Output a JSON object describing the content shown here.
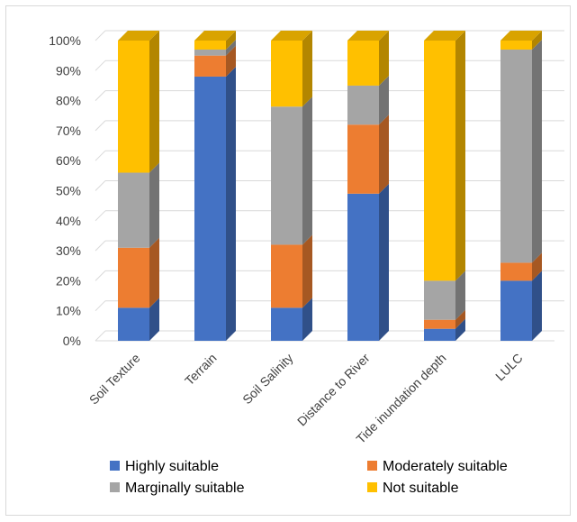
{
  "chart_data": {
    "type": "bar",
    "stacked": true,
    "percent": true,
    "three_d": true,
    "categories": [
      "Soil Texture",
      "Terrain",
      "Soil Salinity",
      "Distance to River",
      "Tide inundation depth",
      "LULC"
    ],
    "series": [
      {
        "name": "Highly suitable",
        "color": "#4472C4",
        "values": [
          11,
          88,
          11,
          49,
          4,
          20
        ]
      },
      {
        "name": "Moderately suitable",
        "color": "#ED7D31",
        "values": [
          20,
          7,
          21,
          23,
          3,
          6
        ]
      },
      {
        "name": "Marginally suitable",
        "color": "#A5A5A5",
        "values": [
          25,
          2,
          46,
          13,
          13,
          71
        ]
      },
      {
        "name": "Not suitable",
        "color": "#FFC000",
        "values": [
          44,
          3,
          22,
          15,
          80,
          3
        ]
      }
    ],
    "ylim": [
      0,
      100
    ],
    "yticks": [
      "0%",
      "10%",
      "20%",
      "30%",
      "40%",
      "50%",
      "60%",
      "70%",
      "80%",
      "90%",
      "100%"
    ],
    "grid": true,
    "legend_position": "bottom",
    "title": "",
    "xlabel": "",
    "ylabel": ""
  }
}
